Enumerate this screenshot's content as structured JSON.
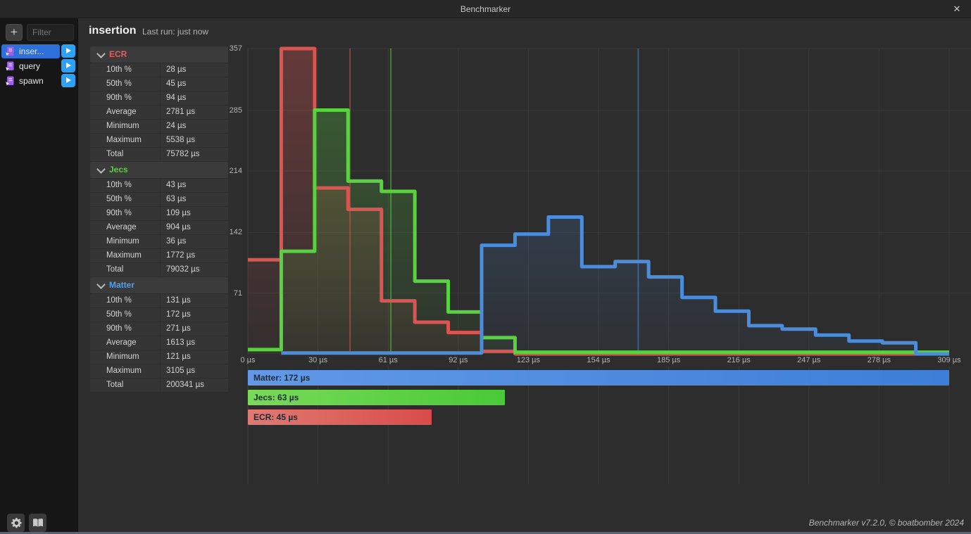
{
  "window": {
    "title": "Benchmarker",
    "close_label": "✕"
  },
  "sidebar": {
    "add_button": "+",
    "filter_placeholder": "Filter",
    "items": [
      {
        "label": "inser...",
        "selected": true
      },
      {
        "label": "query",
        "selected": false
      },
      {
        "label": "spawn",
        "selected": false
      }
    ]
  },
  "header": {
    "title": "insertion",
    "last_run": "Last run: just now"
  },
  "stats": {
    "sections": [
      {
        "name": "ECR",
        "color": "#e45c5c",
        "rows": [
          [
            "10th %",
            "28 µs"
          ],
          [
            "50th %",
            "45 µs"
          ],
          [
            "90th %",
            "94 µs"
          ],
          [
            "Average",
            "2781 µs"
          ],
          [
            "Minimum",
            "24 µs"
          ],
          [
            "Maximum",
            "5538 µs"
          ],
          [
            "Total",
            "75782 µs"
          ]
        ]
      },
      {
        "name": "Jecs",
        "color": "#56d336",
        "rows": [
          [
            "10th %",
            "43 µs"
          ],
          [
            "50th %",
            "63 µs"
          ],
          [
            "90th %",
            "109 µs"
          ],
          [
            "Average",
            "904 µs"
          ],
          [
            "Minimum",
            "36 µs"
          ],
          [
            "Maximum",
            "1772 µs"
          ],
          [
            "Total",
            "79032 µs"
          ]
        ]
      },
      {
        "name": "Matter",
        "color": "#4da1f0",
        "rows": [
          [
            "10th %",
            "131 µs"
          ],
          [
            "50th %",
            "172 µs"
          ],
          [
            "90th %",
            "271 µs"
          ],
          [
            "Average",
            "1613 µs"
          ],
          [
            "Minimum",
            "121 µs"
          ],
          [
            "Maximum",
            "3105 µs"
          ],
          [
            "Total",
            "200341 µs"
          ]
        ]
      }
    ]
  },
  "chart_data": {
    "type": "step-histogram",
    "x_unit": "µs",
    "xlim": [
      0,
      309
    ],
    "ylim": [
      0,
      357
    ],
    "bins": 21,
    "bin_width_us": 14.71,
    "grid": true,
    "xticks": [
      "0 µs",
      "30 µs",
      "61 µs",
      "92 µs",
      "123 µs",
      "154 µs",
      "185 µs",
      "216 µs",
      "247 µs",
      "278 µs",
      "309 µs"
    ],
    "yticks": [
      {
        "value": 71,
        "label": "71"
      },
      {
        "value": 142,
        "label": "142"
      },
      {
        "value": 214,
        "label": "214"
      },
      {
        "value": 285,
        "label": "285"
      },
      {
        "value": 357,
        "label": "357"
      }
    ],
    "series": [
      {
        "name": "ECR",
        "color": "#da5551",
        "legend_gradient": [
          "#e07a72",
          "#d94c49"
        ],
        "median_us": 45,
        "legend_label": "ECR: 45 µs",
        "values": [
          110,
          357,
          194,
          169,
          62,
          37,
          25,
          3,
          0,
          0,
          0,
          0,
          0,
          0,
          0,
          0,
          0,
          0,
          0,
          0,
          0
        ]
      },
      {
        "name": "Jecs",
        "color": "#58d23f",
        "legend_gradient": [
          "#79da58",
          "#49c938"
        ],
        "median_us": 63,
        "legend_label": "Jecs: 63 µs",
        "values": [
          5,
          120,
          285,
          202,
          190,
          85,
          49,
          19,
          2,
          2,
          2,
          2,
          2,
          2,
          2,
          2,
          2,
          2,
          2,
          2,
          2
        ]
      },
      {
        "name": "Matter",
        "color": "#4b8cdb",
        "legend_gradient": [
          "#6199e6",
          "#3d7ed8"
        ],
        "median_us": 172,
        "legend_label": "Matter: 172 µs",
        "values": [
          null,
          1,
          1,
          1,
          1,
          1,
          1,
          127,
          140,
          160,
          102,
          108,
          90,
          66,
          50,
          33,
          29,
          22,
          15,
          13,
          0
        ]
      }
    ],
    "legend_order": [
      "Matter",
      "Jecs",
      "ECR"
    ],
    "legend_position": "bottom"
  },
  "footer": {
    "credit": "Benchmarker v7.2.0, © boatbomber 2024"
  }
}
